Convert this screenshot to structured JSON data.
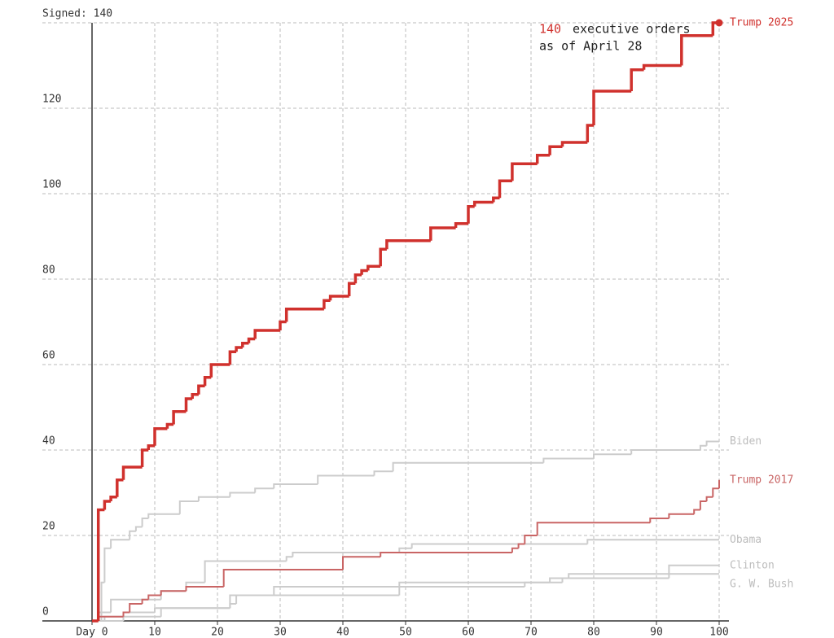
{
  "chart_data": {
    "type": "step-line",
    "annotation": {
      "highlight": "140",
      "lines": [
        "executive orders",
        "as of April 28"
      ]
    },
    "xlim": [
      0,
      100
    ],
    "xticks": [
      {
        "value": 0,
        "label": "Day 0"
      },
      10,
      20,
      30,
      40,
      50,
      60,
      70,
      80,
      90,
      100
    ],
    "ylim": [
      0,
      140
    ],
    "yticks": [
      0,
      20,
      40,
      60,
      80,
      100,
      120,
      {
        "value": 140,
        "label": "Signed: 140"
      }
    ],
    "grid": true,
    "series": [
      {
        "name": "Clinton",
        "color": "#cccccc",
        "x": [
          0,
          2,
          5,
          10,
          22,
          29,
          49,
          75,
          76,
          92,
          100
        ],
        "values": [
          0,
          1,
          2,
          3,
          6,
          8,
          9,
          10,
          11,
          13,
          13
        ]
      },
      {
        "name": "G. W. Bush",
        "color": "#cccccc",
        "x": [
          0,
          5,
          11,
          22,
          23,
          49,
          69,
          73,
          92,
          100
        ],
        "values": [
          0,
          1,
          3,
          4,
          6,
          8,
          9,
          10,
          11,
          11
        ]
      },
      {
        "name": "Obama",
        "color": "#cccccc",
        "x": [
          0,
          1,
          3,
          11,
          15,
          18,
          31,
          32,
          49,
          51,
          79,
          100
        ],
        "values": [
          0,
          2,
          5,
          7,
          9,
          14,
          15,
          16,
          17,
          18,
          19,
          19
        ]
      },
      {
        "name": "Biden",
        "color": "#cccccc",
        "x": [
          0,
          1.5,
          2,
          3,
          6,
          7,
          8,
          9,
          14,
          17,
          22,
          26,
          29,
          36,
          45,
          48,
          72,
          80,
          86,
          97,
          98,
          100
        ],
        "values": [
          0,
          9,
          17,
          19,
          21,
          22,
          24,
          25,
          28,
          29,
          30,
          31,
          32,
          34,
          35,
          37,
          38,
          39,
          40,
          41,
          42,
          42
        ]
      },
      {
        "name": "Trump 2017",
        "color": "#c96565",
        "x": [
          0,
          1,
          5,
          6,
          8,
          9,
          11,
          15,
          21,
          40,
          46,
          67,
          68,
          69,
          71,
          89,
          92,
          96,
          97,
          98,
          99,
          100
        ],
        "values": [
          0,
          1,
          2,
          4,
          5,
          6,
          7,
          8,
          12,
          15,
          16,
          17,
          18,
          20,
          23,
          24,
          25,
          26,
          28,
          29,
          31,
          33
        ]
      },
      {
        "name": "Trump 2025",
        "color": "#d0312d",
        "x": [
          0,
          1,
          2,
          3,
          4,
          5,
          8,
          9,
          10,
          12,
          13,
          15,
          16,
          17,
          18,
          19,
          22,
          23,
          24,
          25,
          26,
          30,
          31,
          37,
          38,
          41,
          42,
          43,
          44,
          46,
          47,
          54,
          58,
          60,
          61,
          64,
          65,
          67,
          71,
          73,
          75,
          79,
          80,
          86,
          88,
          94,
          99,
          100
        ],
        "values": [
          0,
          26,
          28,
          29,
          33,
          36,
          40,
          41,
          45,
          46,
          49,
          52,
          53,
          55,
          57,
          60,
          63,
          64,
          65,
          66,
          68,
          70,
          73,
          75,
          76,
          79,
          81,
          82,
          83,
          87,
          89,
          92,
          93,
          97,
          98,
          99,
          103,
          107,
          109,
          111,
          112,
          116,
          124,
          129,
          130,
          137,
          140,
          140
        ]
      }
    ]
  }
}
